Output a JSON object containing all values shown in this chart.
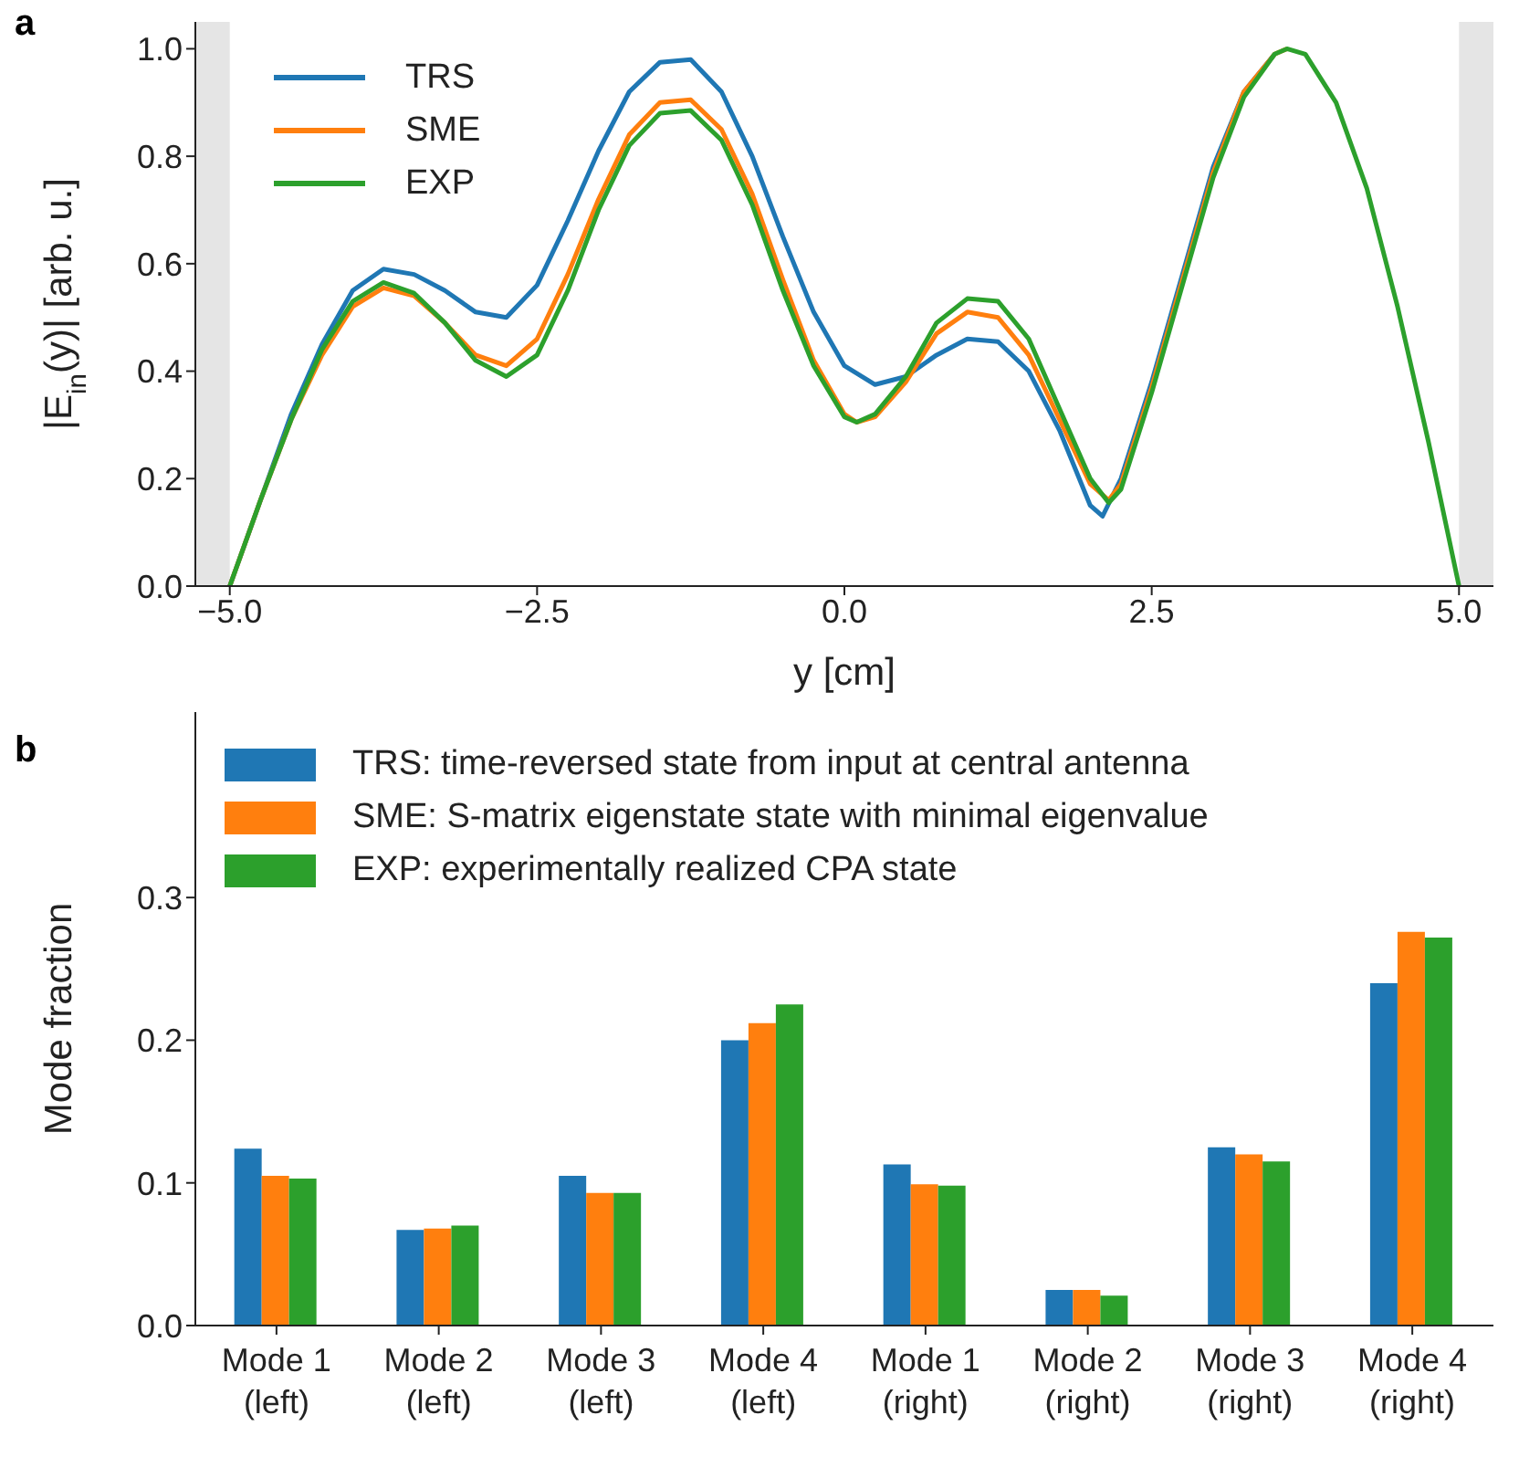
{
  "chart_data": [
    {
      "type": "line",
      "title": "a",
      "xlabel": "y [cm]",
      "ylabel": "|E$_{in}$(y)| [arb. u.]",
      "xlim": [
        -5.28,
        5.28
      ],
      "xticks": [
        {
          "value": -5,
          "label": "−5.0"
        },
        {
          "value": -2.5,
          "label": "−2.5"
        },
        {
          "value": 0,
          "label": "0.0"
        },
        {
          "value": 2.5,
          "label": "2.5"
        },
        {
          "value": 5,
          "label": "5.0"
        }
      ],
      "ylim": [
        0,
        1.05
      ],
      "yticks": [
        {
          "value": 0,
          "label": "0.0"
        },
        {
          "value": 0.2,
          "label": "0.2"
        },
        {
          "value": 0.4,
          "label": "0.4"
        },
        {
          "value": 0.6,
          "label": "0.6"
        },
        {
          "value": 0.8,
          "label": "0.8"
        },
        {
          "value": 1,
          "label": "1.0"
        }
      ],
      "bands": [
        {
          "axis": "x",
          "from": -5.28,
          "to": -5,
          "color": "#e5e5e5"
        },
        {
          "axis": "x",
          "from": 5,
          "to": 5.28,
          "color": "#e5e5e5"
        }
      ],
      "legend": "top left",
      "grid": false,
      "marker": "none",
      "line_style": "solid",
      "series": [
        {
          "name": "TRS",
          "color": "#1f77b4",
          "x": [
            -5,
            -4.75,
            -4.5,
            -4.25,
            -4,
            -3.75,
            -3.5,
            -3.25,
            -3,
            -2.75,
            -2.5,
            -2.25,
            -2,
            -1.75,
            -1.5,
            -1.25,
            -1,
            -0.75,
            -0.5,
            -0.25,
            0,
            0.25,
            0.5,
            0.75,
            1,
            1.25,
            1.5,
            1.75,
            2,
            2.1,
            2.25,
            2.5,
            2.75,
            3,
            3.25,
            3.5
          ],
          "values": [
            0,
            0.16,
            0.32,
            0.45,
            0.55,
            0.59,
            0.58,
            0.55,
            0.51,
            0.5,
            0.56,
            0.68,
            0.81,
            0.92,
            0.975,
            0.98,
            0.92,
            0.8,
            0.65,
            0.51,
            0.41,
            0.375,
            0.39,
            0.43,
            0.46,
            0.455,
            0.4,
            0.29,
            0.15,
            0.13,
            0.2,
            0.38,
            0.58,
            0.78,
            0.92,
            0.99
          ]
        },
        {
          "name": "SME",
          "color": "#ff7f0e",
          "x": [
            -5,
            -4.75,
            -4.5,
            -4.25,
            -4,
            -3.75,
            -3.5,
            -3.25,
            -3,
            -2.75,
            -2.5,
            -2.25,
            -2,
            -1.75,
            -1.5,
            -1.25,
            -1,
            -0.75,
            -0.5,
            -0.25,
            0,
            0.1,
            0.25,
            0.5,
            0.75,
            1,
            1.25,
            1.5,
            1.75,
            2,
            2.15,
            2.25,
            2.5,
            2.75,
            3,
            3.25,
            3.5,
            3.6
          ],
          "values": [
            0,
            0.16,
            0.31,
            0.43,
            0.52,
            0.555,
            0.54,
            0.49,
            0.43,
            0.41,
            0.46,
            0.58,
            0.72,
            0.84,
            0.9,
            0.905,
            0.85,
            0.73,
            0.57,
            0.42,
            0.32,
            0.305,
            0.315,
            0.38,
            0.47,
            0.51,
            0.5,
            0.43,
            0.31,
            0.19,
            0.16,
            0.19,
            0.37,
            0.57,
            0.77,
            0.92,
            0.99,
            1.0
          ]
        },
        {
          "name": "EXP",
          "color": "#2ca02c",
          "x": [
            -5,
            -4.75,
            -4.5,
            -4.25,
            -4,
            -3.75,
            -3.5,
            -3.25,
            -3,
            -2.75,
            -2.5,
            -2.25,
            -2,
            -1.75,
            -1.5,
            -1.25,
            -1,
            -0.75,
            -0.5,
            -0.25,
            0,
            0.1,
            0.25,
            0.5,
            0.75,
            1,
            1.25,
            1.5,
            1.75,
            2,
            2.15,
            2.25,
            2.5,
            2.75,
            3,
            3.25,
            3.5,
            3.6,
            3.75,
            4,
            4.25,
            4.5,
            4.75,
            5
          ],
          "values": [
            0,
            0.16,
            0.31,
            0.44,
            0.53,
            0.565,
            0.545,
            0.49,
            0.42,
            0.39,
            0.43,
            0.55,
            0.7,
            0.82,
            0.88,
            0.885,
            0.83,
            0.71,
            0.55,
            0.41,
            0.315,
            0.305,
            0.32,
            0.39,
            0.49,
            0.535,
            0.53,
            0.46,
            0.33,
            0.2,
            0.155,
            0.18,
            0.36,
            0.56,
            0.76,
            0.91,
            0.99,
            1.0,
            0.99,
            0.9,
            0.74,
            0.52,
            0.27,
            0
          ]
        }
      ]
    },
    {
      "type": "bar",
      "title": "b",
      "ylabel": "Mode fraction",
      "categories": [
        "Mode 1 (left)",
        "Mode 2 (left)",
        "Mode 3 (left)",
        "Mode 4 (left)",
        "Mode 1 (right)",
        "Mode 2 (right)",
        "Mode 3 (right)",
        "Mode 4 (right)"
      ],
      "ylim": [
        0,
        0.43
      ],
      "yticks": [
        {
          "value": 0,
          "label": "0.0"
        },
        {
          "value": 0.1,
          "label": "0.1"
        },
        {
          "value": 0.2,
          "label": "0.2"
        },
        {
          "value": 0.3,
          "label": "0.3"
        }
      ],
      "legend": "top left",
      "grid": false,
      "series": [
        {
          "name": "TRS: time-reversed state from input at central antenna",
          "color": "#1f77b4",
          "values": [
            0.124,
            0.067,
            0.105,
            0.2,
            0.113,
            0.025,
            0.125,
            0.24
          ]
        },
        {
          "name": "SME: S-matrix eigenstate state with minimal eigenvalue",
          "color": "#ff7f0e",
          "values": [
            0.105,
            0.068,
            0.093,
            0.212,
            0.099,
            0.025,
            0.12,
            0.276
          ]
        },
        {
          "name": "EXP: experimentally realized CPA state",
          "color": "#2ca02c",
          "values": [
            0.103,
            0.07,
            0.093,
            0.225,
            0.098,
            0.021,
            0.115,
            0.272
          ]
        }
      ]
    }
  ]
}
